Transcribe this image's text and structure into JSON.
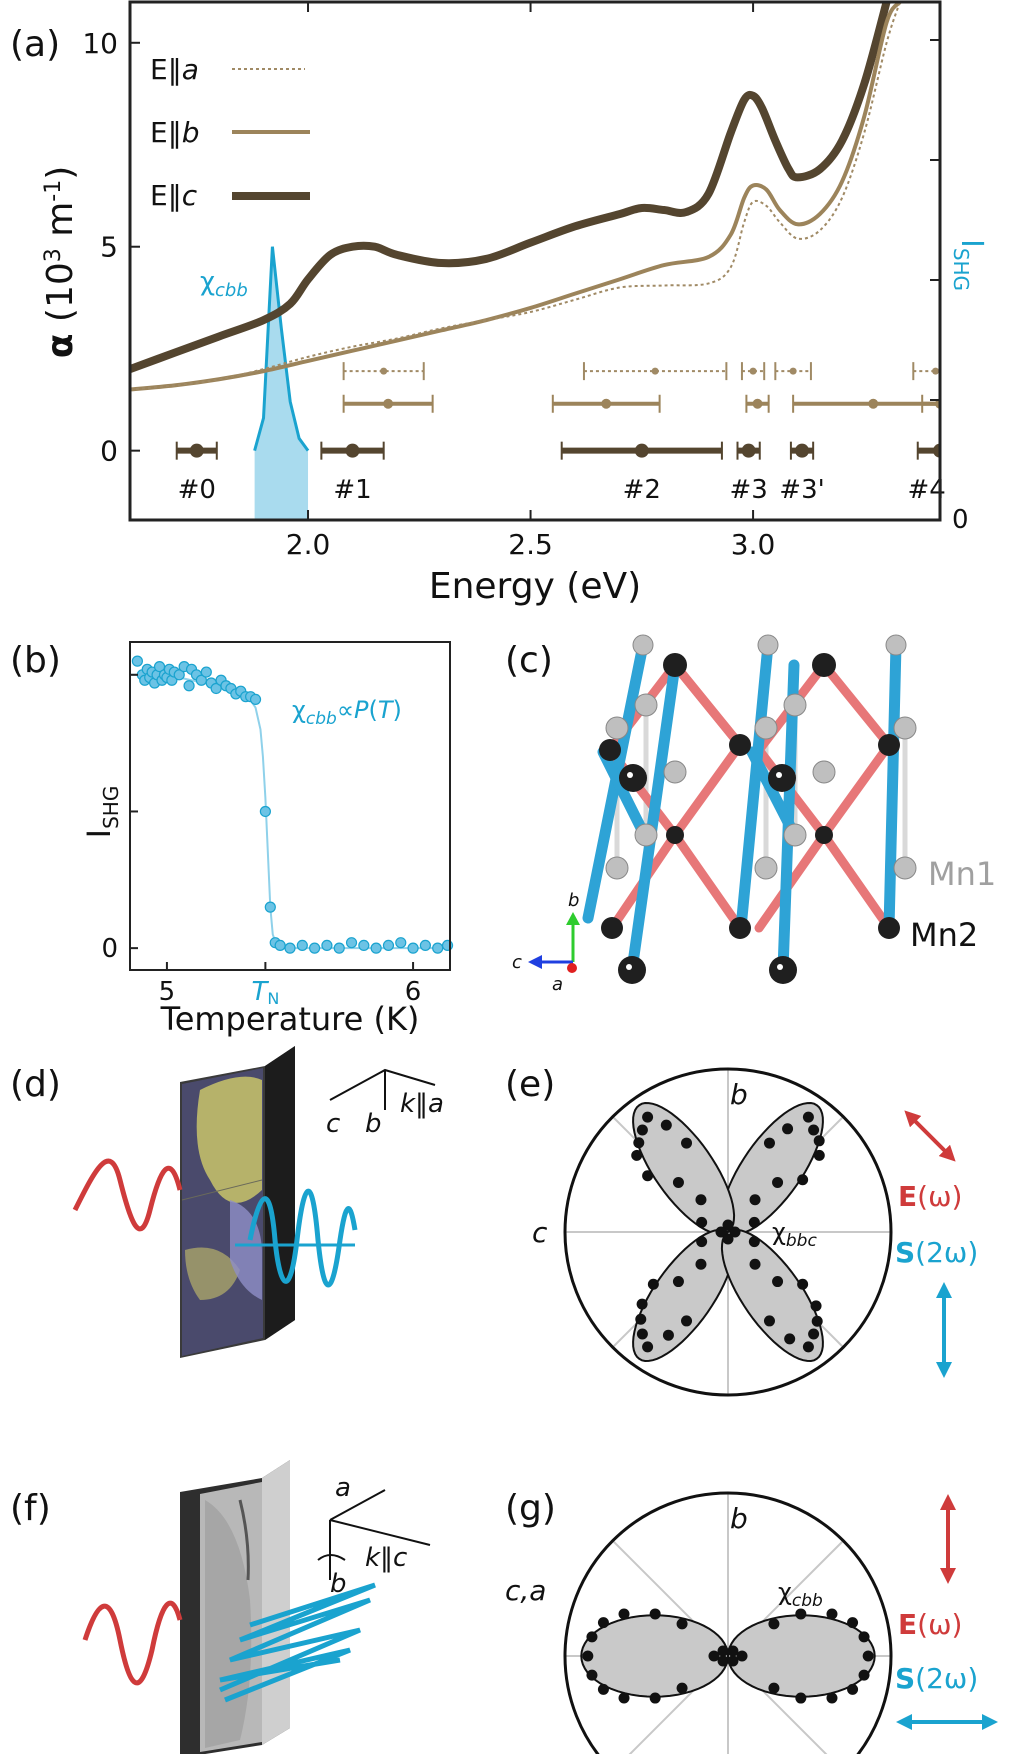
{
  "colors": {
    "dark": "#54452f",
    "mid": "#9c845b",
    "light": "#a08a65",
    "cyan": "#1aa3cf",
    "cyan_fill": "#a9dbee",
    "red": "#cf3b3b",
    "lobe": "#c9c9c9",
    "pink": "#e77778",
    "blue": "#2ea3d6"
  },
  "panels": {
    "a": "(a)",
    "b": "(b)",
    "c": "(c)",
    "d": "(d)",
    "e": "(e)",
    "f": "(f)",
    "g": "(g)"
  },
  "chart_data": [
    {
      "id": "a",
      "type": "line",
      "xlabel": "Energy (eV)",
      "ylabel": "α (10³ m⁻¹)",
      "ylabel_right": "I_SHG",
      "xlim": [
        1.6,
        3.42
      ],
      "ylim": [
        -1.7,
        11.0
      ],
      "xticks": [
        2.0,
        2.5,
        3.0
      ],
      "xtick_labels": [
        "2.0",
        "2.5",
        "3.0"
      ],
      "yticks": [
        0,
        5,
        10
      ],
      "ytick_labels": [
        "0",
        "5",
        "10"
      ],
      "right_tick_label": "0",
      "legend": [
        {
          "label": "E‖a",
          "style": "dotted"
        },
        {
          "label": "E‖b",
          "style": "medium"
        },
        {
          "label": "E‖c",
          "style": "thick"
        }
      ],
      "series": [
        {
          "name": "E‖c",
          "x": [
            1.6,
            1.7,
            1.8,
            1.9,
            1.96,
            2.0,
            2.05,
            2.1,
            2.15,
            2.2,
            2.3,
            2.4,
            2.5,
            2.6,
            2.7,
            2.75,
            2.8,
            2.85,
            2.9,
            2.95,
            2.98,
            3.0,
            3.02,
            3.05,
            3.08,
            3.1,
            3.15,
            3.2,
            3.25,
            3.3
          ],
          "y": [
            2.0,
            2.4,
            2.8,
            3.2,
            3.6,
            4.2,
            4.8,
            5.0,
            5.0,
            4.8,
            4.6,
            4.7,
            5.1,
            5.5,
            5.8,
            5.95,
            5.9,
            5.85,
            6.3,
            7.8,
            8.6,
            8.7,
            8.4,
            7.6,
            6.9,
            6.7,
            6.9,
            7.6,
            9.0,
            11.0
          ]
        },
        {
          "name": "E‖b",
          "x": [
            1.6,
            1.7,
            1.8,
            1.9,
            2.0,
            2.1,
            2.2,
            2.3,
            2.4,
            2.5,
            2.6,
            2.7,
            2.8,
            2.9,
            2.95,
            2.98,
            3.0,
            3.03,
            3.06,
            3.1,
            3.15,
            3.2,
            3.25,
            3.3,
            3.33
          ],
          "y": [
            1.5,
            1.6,
            1.75,
            1.95,
            2.2,
            2.45,
            2.7,
            2.95,
            3.2,
            3.5,
            3.85,
            4.2,
            4.55,
            4.75,
            5.3,
            6.2,
            6.5,
            6.4,
            5.9,
            5.55,
            5.8,
            6.6,
            8.2,
            10.5,
            11.0
          ]
        },
        {
          "name": "E‖a",
          "x": [
            1.6,
            1.7,
            1.8,
            1.9,
            2.0,
            2.1,
            2.2,
            2.3,
            2.4,
            2.5,
            2.6,
            2.7,
            2.8,
            2.9,
            2.95,
            2.98,
            3.0,
            3.03,
            3.06,
            3.1,
            3.15,
            3.2,
            3.25,
            3.3,
            3.33
          ],
          "y": [
            1.5,
            1.6,
            1.75,
            2.0,
            2.3,
            2.55,
            2.75,
            3.0,
            3.2,
            3.4,
            3.7,
            4.0,
            4.05,
            4.1,
            4.5,
            5.6,
            6.1,
            6.0,
            5.6,
            5.2,
            5.4,
            6.2,
            7.8,
            10.0,
            11.0
          ]
        }
      ],
      "chi_peak": {
        "label": "χcbb",
        "x_peaks": [
          1.88,
          1.9,
          1.92,
          1.94,
          1.96,
          1.98,
          2.0
        ],
        "y_values": [
          0.0,
          0.8,
          5.0,
          3.0,
          1.2,
          0.3,
          0.0
        ]
      },
      "error_bars": [
        {
          "row": "E‖c",
          "y": 0.0,
          "points": [
            {
              "x": 1.75,
              "err": 0.045
            },
            {
              "x": 2.1,
              "err": 0.07
            },
            {
              "x": 2.75,
              "err": 0.18
            },
            {
              "x": 2.99,
              "err": 0.025
            },
            {
              "x": 3.11,
              "err": 0.025
            },
            {
              "x": 3.42,
              "err": 0.05
            }
          ]
        },
        {
          "row": "E‖b",
          "y": 1.15,
          "points": [
            {
              "x": 2.18,
              "err": 0.1
            },
            {
              "x": 2.67,
              "err": 0.12
            },
            {
              "x": 3.01,
              "err": 0.025
            },
            {
              "x": 3.27,
              "err": 0.18
            },
            {
              "x": 3.42,
              "err": 0.04
            }
          ]
        },
        {
          "row": "E‖a",
          "y": 1.95,
          "points": [
            {
              "x": 2.17,
              "err": 0.09
            },
            {
              "x": 2.78,
              "err": 0.16
            },
            {
              "x": 3.0,
              "err": 0.025
            },
            {
              "x": 3.09,
              "err": 0.04
            },
            {
              "x": 3.41,
              "err": 0.05
            }
          ]
        }
      ],
      "mode_labels": [
        {
          "label": "#0",
          "x": 1.75
        },
        {
          "label": "#1",
          "x": 2.1
        },
        {
          "label": "#2",
          "x": 2.75
        },
        {
          "label": "#3",
          "x": 2.99
        },
        {
          "label": "#3'",
          "x": 3.11
        },
        {
          "label": "#4",
          "x": 3.39
        }
      ]
    },
    {
      "id": "b",
      "type": "scatter",
      "xlabel": "Temperature (K)",
      "ylabel": "I_SHG",
      "xlim": [
        4.85,
        6.15
      ],
      "ylim": [
        -0.08,
        1.12
      ],
      "xtick_labels": [
        "5",
        "T_N",
        "6"
      ],
      "xticks": [
        5.0,
        5.4,
        6.0
      ],
      "ytick_labels": [
        "0"
      ],
      "annotation": "χcbb∝P(T)",
      "fit": {
        "x": [
          4.85,
          5.0,
          5.2,
          5.33,
          5.36,
          5.38,
          5.39,
          5.4,
          5.41,
          5.42,
          5.43,
          5.45,
          5.5,
          6.15
        ],
        "y": [
          1.0,
          1.0,
          0.96,
          0.92,
          0.88,
          0.8,
          0.7,
          0.55,
          0.35,
          0.15,
          0.05,
          0.0,
          0.0,
          0.0
        ]
      },
      "points": [
        [
          4.88,
          1.05
        ],
        [
          4.9,
          1.0
        ],
        [
          4.91,
          0.98
        ],
        [
          4.92,
          1.02
        ],
        [
          4.93,
          0.99
        ],
        [
          4.94,
          1.01
        ],
        [
          4.95,
          0.97
        ],
        [
          4.96,
          1.0
        ],
        [
          4.97,
          1.03
        ],
        [
          4.98,
          0.98
        ],
        [
          4.99,
          1.0
        ],
        [
          5.0,
          0.99
        ],
        [
          5.01,
          1.02
        ],
        [
          5.02,
          0.98
        ],
        [
          5.03,
          1.01
        ],
        [
          5.05,
          1.0
        ],
        [
          5.07,
          1.03
        ],
        [
          5.09,
          0.96
        ],
        [
          5.1,
          1.02
        ],
        [
          5.12,
          1.0
        ],
        [
          5.14,
          0.98
        ],
        [
          5.16,
          1.01
        ],
        [
          5.18,
          0.97
        ],
        [
          5.2,
          0.95
        ],
        [
          5.22,
          0.98
        ],
        [
          5.24,
          0.96
        ],
        [
          5.26,
          0.95
        ],
        [
          5.28,
          0.93
        ],
        [
          5.3,
          0.94
        ],
        [
          5.32,
          0.92
        ],
        [
          5.34,
          0.92
        ],
        [
          5.36,
          0.91
        ],
        [
          5.4,
          0.5
        ],
        [
          5.42,
          0.15
        ],
        [
          5.44,
          0.02
        ],
        [
          5.46,
          0.01
        ],
        [
          5.5,
          0.0
        ],
        [
          5.55,
          0.01
        ],
        [
          5.6,
          0.0
        ],
        [
          5.65,
          0.01
        ],
        [
          5.7,
          0.0
        ],
        [
          5.75,
          0.02
        ],
        [
          5.8,
          0.01
        ],
        [
          5.85,
          0.0
        ],
        [
          5.9,
          0.01
        ],
        [
          5.95,
          0.02
        ],
        [
          6.0,
          0.0
        ],
        [
          6.05,
          0.01
        ],
        [
          6.1,
          0.0
        ],
        [
          6.14,
          0.01
        ]
      ]
    },
    {
      "id": "e",
      "type": "scatter",
      "axis_labels": {
        "top": "b",
        "left": "c"
      },
      "annotation": "χbbc",
      "points_polar_deg": [
        [
          125,
          1.0
        ],
        [
          130,
          0.95
        ],
        [
          135,
          0.9
        ],
        [
          140,
          0.85
        ],
        [
          120,
          0.88
        ],
        [
          115,
          0.7
        ],
        [
          145,
          0.7
        ],
        [
          135,
          0.5
        ],
        [
          130,
          0.3
        ],
        [
          55,
          1.0
        ],
        [
          50,
          0.95
        ],
        [
          45,
          0.92
        ],
        [
          40,
          0.85
        ],
        [
          60,
          0.85
        ],
        [
          65,
          0.7
        ],
        [
          35,
          0.65
        ],
        [
          45,
          0.5
        ],
        [
          50,
          0.3
        ],
        [
          235,
          1.0
        ],
        [
          230,
          0.95
        ],
        [
          225,
          0.88
        ],
        [
          220,
          0.8
        ],
        [
          240,
          0.85
        ],
        [
          245,
          0.7
        ],
        [
          215,
          0.65
        ],
        [
          225,
          0.5
        ],
        [
          230,
          0.3
        ],
        [
          305,
          1.0
        ],
        [
          310,
          0.95
        ],
        [
          315,
          0.9
        ],
        [
          320,
          0.82
        ],
        [
          300,
          0.88
        ],
        [
          295,
          0.7
        ],
        [
          325,
          0.65
        ],
        [
          315,
          0.5
        ],
        [
          310,
          0.3
        ],
        [
          0,
          0.05
        ],
        [
          90,
          0.05
        ],
        [
          180,
          0.05
        ],
        [
          270,
          0.05
        ],
        [
          20,
          0.2
        ],
        [
          160,
          0.2
        ],
        [
          200,
          0.2
        ],
        [
          340,
          0.2
        ]
      ]
    },
    {
      "id": "g",
      "type": "scatter",
      "axis_labels": {
        "top": "b",
        "left": "c,a"
      },
      "annotation": "χcbb",
      "points_polar_deg": [
        [
          0,
          1.0
        ],
        [
          8,
          0.98
        ],
        [
          15,
          0.92
        ],
        [
          22,
          0.8
        ],
        [
          30,
          0.6
        ],
        [
          352,
          0.98
        ],
        [
          345,
          0.92
        ],
        [
          338,
          0.8
        ],
        [
          330,
          0.6
        ],
        [
          35,
          0.4
        ],
        [
          325,
          0.4
        ],
        [
          180,
          1.0
        ],
        [
          172,
          0.98
        ],
        [
          165,
          0.92
        ],
        [
          158,
          0.8
        ],
        [
          150,
          0.6
        ],
        [
          188,
          0.98
        ],
        [
          195,
          0.92
        ],
        [
          202,
          0.8
        ],
        [
          210,
          0.6
        ],
        [
          145,
          0.4
        ],
        [
          215,
          0.4
        ],
        [
          0,
          0.1
        ],
        [
          180,
          0.1
        ],
        [
          45,
          0.05
        ],
        [
          135,
          0.05
        ],
        [
          225,
          0.05
        ],
        [
          315,
          0.05
        ]
      ]
    }
  ],
  "panel_c": {
    "mn1": "Mn1",
    "mn2": "Mn2",
    "axes": {
      "b": "b",
      "c": "c",
      "a": "a"
    }
  },
  "panel_d": {
    "axes_label_c": "c",
    "axes_label_b": "b",
    "axes_label_k": "k‖a"
  },
  "panel_f": {
    "axes_label_a": "a",
    "axes_label_b": "b",
    "axes_label_k": "k‖c"
  },
  "legend_e": {
    "E": "E(ω)",
    "S": "S(2ω)"
  },
  "legend_g": {
    "E": "E(ω)",
    "S": "S(2ω)"
  }
}
